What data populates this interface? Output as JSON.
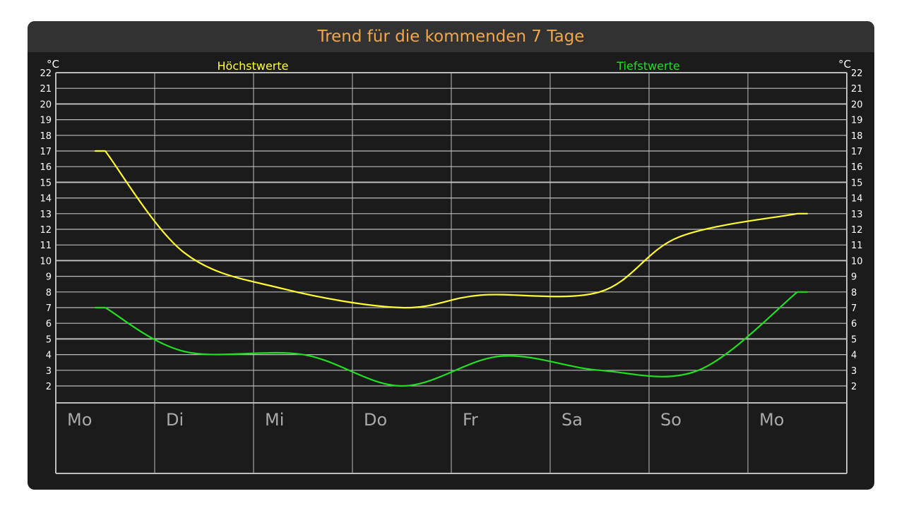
{
  "title": "Trend für die kommenden 7 Tage",
  "colors": {
    "background": "#1b1b1b",
    "titlebar": "#323232",
    "title": "#f0a64b",
    "grid": "#bdbdbd",
    "axis_text": "#ffffff",
    "day_text": "#a9a9a9",
    "high_series": "#ffff33",
    "low_series": "#22dd22"
  },
  "chart_data": {
    "type": "line",
    "unit_left": "°C",
    "unit_right": "°C",
    "ylim": [
      2,
      22
    ],
    "yticks": [
      2,
      3,
      4,
      5,
      6,
      7,
      8,
      9,
      10,
      11,
      12,
      13,
      14,
      15,
      16,
      17,
      18,
      19,
      20,
      21,
      22
    ],
    "categories": [
      "Mo",
      "Di",
      "Mi",
      "Do",
      "Fr",
      "Sa",
      "So",
      "Mo"
    ],
    "grid": true,
    "series": [
      {
        "name": "Höchstwerte",
        "color": "#ffff33",
        "points": [
          {
            "day": 0.5,
            "value": 17
          },
          {
            "day": 1.3,
            "value": 10.5
          },
          {
            "day": 2.3,
            "value": 8.2
          },
          {
            "day": 3.5,
            "value": 7
          },
          {
            "day": 4.3,
            "value": 7.8
          },
          {
            "day": 5.5,
            "value": 8
          },
          {
            "day": 6.3,
            "value": 11.5
          },
          {
            "day": 7.5,
            "value": 13
          }
        ]
      },
      {
        "name": "Tiefstwerte",
        "color": "#22dd22",
        "points": [
          {
            "day": 0.5,
            "value": 7
          },
          {
            "day": 1.3,
            "value": 4.2
          },
          {
            "day": 2.5,
            "value": 4
          },
          {
            "day": 3.5,
            "value": 2
          },
          {
            "day": 4.5,
            "value": 3.9
          },
          {
            "day": 5.5,
            "value": 3
          },
          {
            "day": 6.5,
            "value": 3
          },
          {
            "day": 7.5,
            "value": 8
          }
        ]
      }
    ]
  }
}
